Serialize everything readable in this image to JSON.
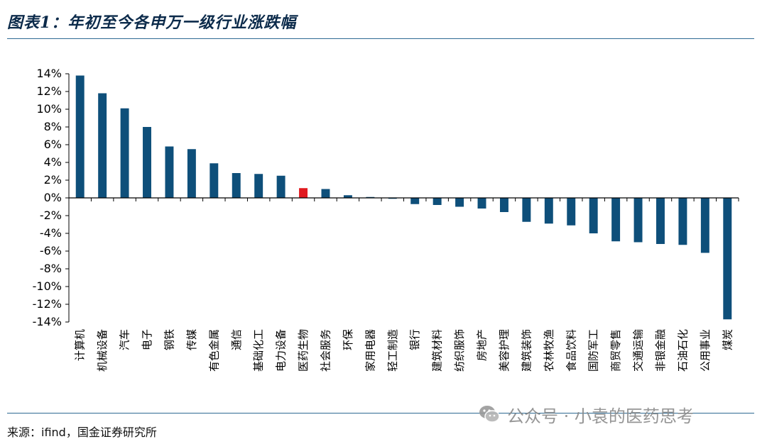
{
  "header": {
    "title": "图表1：年初至今各申万一级行业涨跌幅"
  },
  "footer": {
    "source": "来源：ifind，国金证券研究所"
  },
  "watermark": {
    "text": "公众号 · 小袁的医药思考",
    "icon": "wechat-icon"
  },
  "colors": {
    "bar": "#0e4f7a",
    "highlight": "#e0191f",
    "rule": "#2e6a93"
  },
  "chart_data": {
    "type": "bar",
    "title": "图表1：年初至今各申万一级行业涨跌幅",
    "xlabel": "",
    "ylabel": "",
    "ylim": [
      -14,
      14
    ],
    "yticks": [
      "14%",
      "12%",
      "10%",
      "8%",
      "6%",
      "4%",
      "2%",
      "0%",
      "-2%",
      "-4%",
      "-6%",
      "-8%",
      "-10%",
      "-12%",
      "-14%"
    ],
    "grid": false,
    "highlight_category": "医药生物",
    "categories": [
      "计算机",
      "机械设备",
      "汽车",
      "电子",
      "钢铁",
      "传媒",
      "有色金属",
      "通信",
      "基础化工",
      "电力设备",
      "医药生物",
      "社会服务",
      "环保",
      "家用电器",
      "轻工制造",
      "银行",
      "建筑材料",
      "纺织服饰",
      "房地产",
      "美容护理",
      "建筑装饰",
      "农林牧渔",
      "食品饮料",
      "国防军工",
      "商贸零售",
      "交通运输",
      "非银金融",
      "石油石化",
      "公用事业",
      "煤炭"
    ],
    "values": [
      13.8,
      11.8,
      10.1,
      8.0,
      5.8,
      5.5,
      3.9,
      2.8,
      2.7,
      2.5,
      1.1,
      1.0,
      0.3,
      0.1,
      -0.1,
      -0.7,
      -0.8,
      -1.0,
      -1.2,
      -1.6,
      -2.7,
      -2.9,
      -3.1,
      -4.0,
      -4.9,
      -5.0,
      -5.2,
      -5.3,
      -6.2,
      -13.7
    ]
  }
}
